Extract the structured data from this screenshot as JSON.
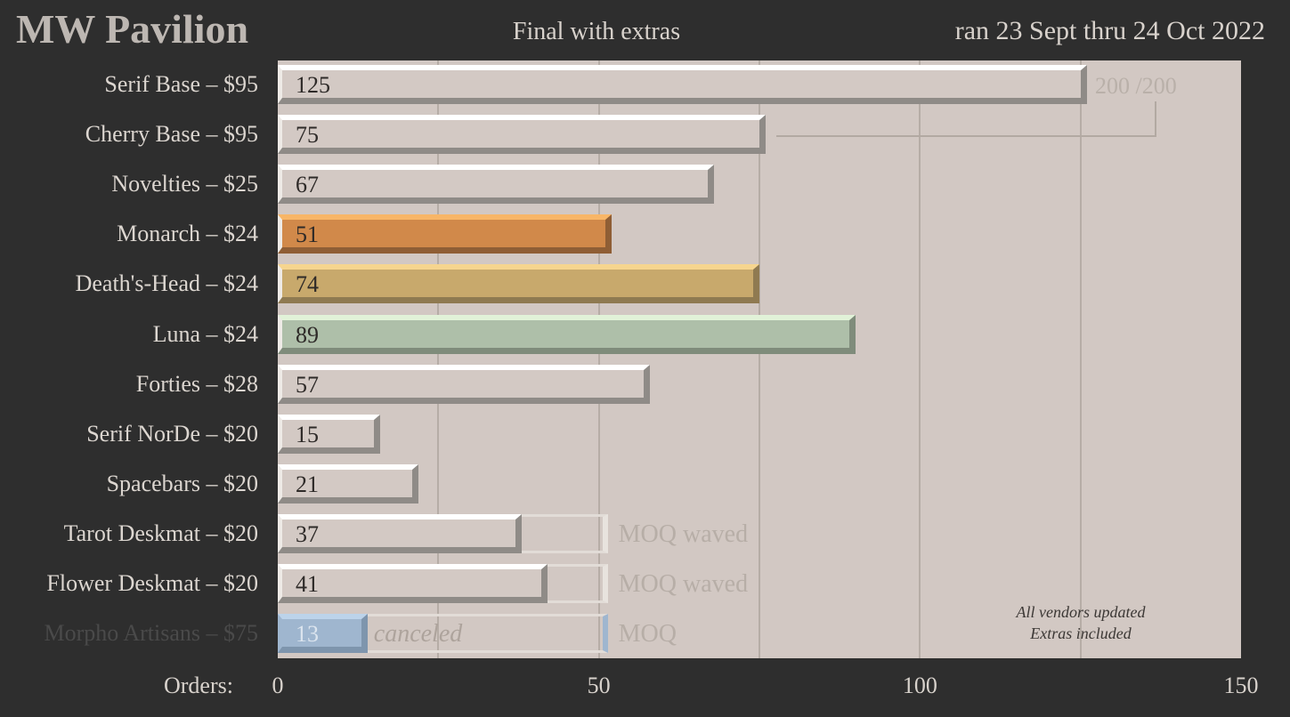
{
  "chart_data": {
    "type": "bar",
    "orientation": "horizontal",
    "title": "MW Pavilion",
    "subtitle": "Final with extras",
    "date_range": "ran 23 Sept thru 24 Oct 2022",
    "xlabel": "Orders:",
    "xlim": [
      0,
      150
    ],
    "x_ticks": [
      "0",
      "50",
      "100",
      "150"
    ],
    "grid": true,
    "categories": [
      "Serif Base – $95",
      "Cherry Base – $95",
      "Novelties – $25",
      "Monarch – $24",
      "Death's-Head – $24",
      "Luna – $24",
      "Forties – $28",
      "Serif NorDe – $20",
      "Spacebars – $20",
      "Tarot Deskmat – $20",
      "Flower Deskmat – $20",
      "Morpho Artisans – $75"
    ],
    "values": [
      125,
      75,
      67,
      51,
      74,
      89,
      57,
      15,
      21,
      37,
      41,
      13
    ],
    "value_labels": [
      "125",
      "75",
      "67",
      "51",
      "74",
      "89",
      "57",
      "15",
      "21",
      "37",
      "41",
      "13"
    ],
    "colors": [
      "#d3c9c4",
      "#d3c9c4",
      "#d3c9c4",
      "#d1894a",
      "#c8a96c",
      "#aebfa9",
      "#d3c9c4",
      "#d3c9c4",
      "#d3c9c4",
      "#d3c9c4",
      "#d3c9c4",
      "#9fb6cf"
    ],
    "top_colors": [
      "#ffffff",
      "#ffffff",
      "#ffffff",
      "#f8b667",
      "#f6d58f",
      "#e1f2d8",
      "#ffffff",
      "#ffffff",
      "#ffffff",
      "#ffffff",
      "#ffffff",
      "#bcd3ea"
    ],
    "side_colors": [
      "#8f8b87",
      "#8f8b87",
      "#8f8b87",
      "#8f5e35",
      "#8f7a51",
      "#7f8c7b",
      "#8f8b87",
      "#8f8b87",
      "#8f8b87",
      "#8f8b87",
      "#8f8b87",
      "#7e95ad"
    ],
    "moq": 50,
    "moq_rows": [
      {
        "index": 9,
        "text": "MOQ waved"
      },
      {
        "index": 10,
        "text": "MOQ waved"
      },
      {
        "index": 11,
        "text": "MOQ",
        "inner_text": "canceled"
      }
    ],
    "dimmed_rows": [
      11
    ],
    "shared_cap": {
      "label": "200 /200",
      "total": 200,
      "rows": [
        0,
        1
      ]
    },
    "annotation": [
      "All vendors updated",
      "Extras included"
    ]
  }
}
